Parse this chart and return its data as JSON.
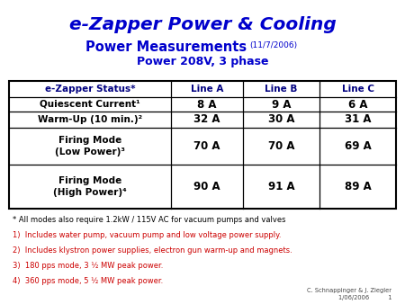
{
  "title": "e-Zapper Power & Cooling",
  "subtitle_main": "Power Measurements",
  "subtitle_date": "(11/7/2006)",
  "subtitle_sub": "Power 208V, 3 phase",
  "title_color": "#0000CC",
  "subtitle_color": "#0000CC",
  "bg_color": "#FFFFFF",
  "table_headers": [
    "e-Zapper Status*",
    "Line A",
    "Line B",
    "Line C"
  ],
  "table_rows": [
    [
      "Quiescent Current¹",
      "8 A",
      "9 A",
      "6 A"
    ],
    [
      "Warm-Up (10 min.)²",
      "32 A",
      "30 A",
      "31 A"
    ],
    [
      "Firing Mode\n(Low Power)³",
      "70 A",
      "70 A",
      "69 A"
    ],
    [
      "Firing Mode\n(High Power)⁴",
      "90 A",
      "91 A",
      "89 A"
    ]
  ],
  "footnotes": [
    "* All modes also require 1.2kW / 115V AC for vacuum pumps and valves",
    "1)  Includes water pump, vacuum pump and low voltage power supply.",
    "2)  Includes klystron power supplies, electron gun warm-up and magnets.",
    "3)  180 pps mode, 3 ½ MW peak power.",
    "4)  360 pps mode, 5 ½ MW peak power."
  ],
  "footnote_colors": [
    "#000000",
    "#CC0000",
    "#CC0000",
    "#CC0000",
    "#CC0000"
  ],
  "credit_line1": "C. Schnappinger & J. Ziegler",
  "credit_line2": "1/06/2006          1"
}
